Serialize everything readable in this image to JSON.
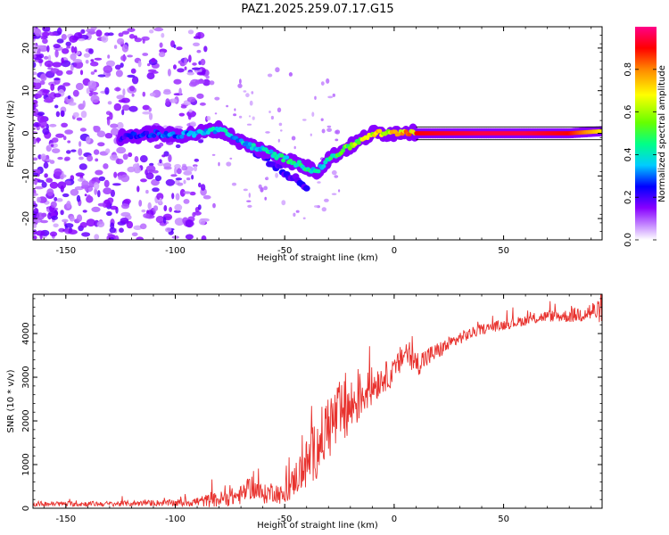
{
  "title": "PAZ1.2025.259.07.17.G15",
  "chart_data": [
    {
      "type": "heatmap",
      "xlabel": "Height of straight line (km)",
      "ylabel": "Frequency (Hz)",
      "xlim": [
        -165,
        95
      ],
      "ylim": [
        -25,
        25
      ],
      "xticks": [
        -150,
        -100,
        -50,
        0,
        50
      ],
      "yticks": [
        -20,
        -10,
        0,
        10,
        20
      ],
      "colorbar": {
        "label": "Normalized spectral amplitude",
        "range": [
          0,
          1
        ],
        "ticks": [
          0.0,
          0.2,
          0.4,
          0.6,
          0.8
        ],
        "colors": [
          "#ffffff",
          "#cc99ff",
          "#8800ff",
          "#0000ff",
          "#00ccff",
          "#00ff88",
          "#66ff00",
          "#ffff00",
          "#ff8800",
          "#ff0000",
          "#ff0088"
        ]
      },
      "ridge": {
        "x": [
          -125,
          -110,
          -100,
          -90,
          -80,
          -70,
          -60,
          -50,
          -40,
          -35,
          -30,
          -20,
          -10,
          0,
          5,
          10,
          20,
          40,
          60,
          80,
          95
        ],
        "y": [
          -1,
          0,
          -0.5,
          0,
          1,
          -2,
          -4,
          -6,
          -8,
          -9,
          -6,
          -3,
          0,
          0,
          0.5,
          0,
          0,
          0,
          0,
          0,
          0.5
        ],
        "amplitude": [
          0.25,
          0.3,
          0.35,
          0.4,
          0.45,
          0.4,
          0.45,
          0.5,
          0.5,
          0.45,
          0.5,
          0.65,
          0.75,
          0.8,
          0.85,
          0.9,
          0.92,
          0.95,
          0.95,
          0.9,
          0.7
        ]
      }
    },
    {
      "type": "line",
      "xlabel": "Height of straight line (km)",
      "ylabel": "SNR (10 * v/v)",
      "xlim": [
        -165,
        95
      ],
      "ylim": [
        0,
        4900
      ],
      "xticks": [
        -150,
        -100,
        -50,
        0,
        50
      ],
      "yticks": [
        0,
        1000,
        2000,
        3000,
        4000
      ],
      "series": [
        {
          "color": "#e8322e",
          "x": [
            -165,
            -150,
            -130,
            -110,
            -100,
            -90,
            -80,
            -70,
            -65,
            -60,
            -55,
            -50,
            -45,
            -40,
            -35,
            -30,
            -25,
            -20,
            -15,
            -10,
            -5,
            0,
            5,
            10,
            20,
            30,
            40,
            50,
            60,
            70,
            80,
            90,
            95
          ],
          "y": [
            100,
            100,
            100,
            120,
            120,
            150,
            200,
            300,
            500,
            300,
            400,
            250,
            700,
            1000,
            1400,
            1900,
            2100,
            2300,
            2600,
            2800,
            3000,
            3100,
            3600,
            3300,
            3600,
            3900,
            4100,
            4200,
            4300,
            4400,
            4400,
            4500,
            4500
          ],
          "noise": [
            60,
            60,
            60,
            70,
            80,
            120,
            180,
            220,
            280,
            220,
            250,
            200,
            400,
            600,
            700,
            800,
            800,
            700,
            550,
            450,
            350,
            300,
            350,
            300,
            200,
            150,
            120,
            120,
            120,
            130,
            150,
            250,
            250
          ]
        }
      ]
    }
  ]
}
